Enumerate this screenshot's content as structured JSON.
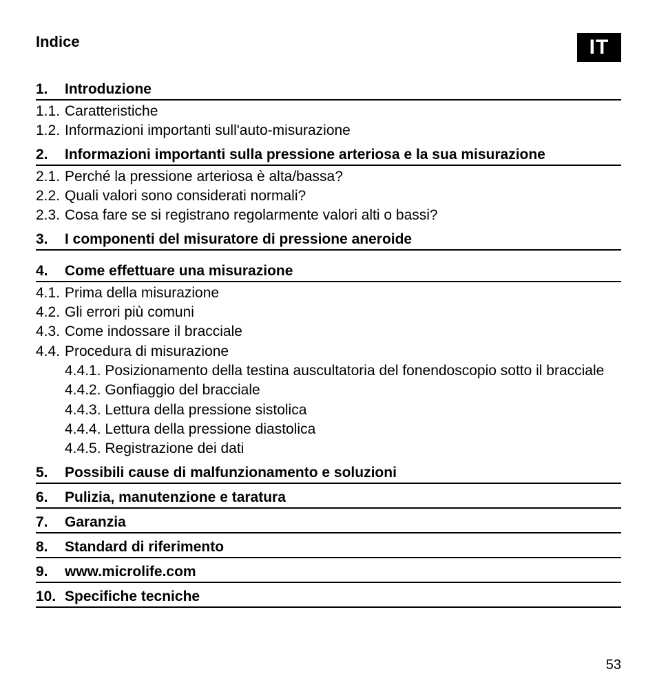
{
  "title": "Indice",
  "lang_badge": "IT",
  "page_number": "53",
  "colors": {
    "text": "#000000",
    "background": "#ffffff",
    "badge_bg": "#000000",
    "badge_text": "#ffffff",
    "rule": "#000000"
  },
  "typography": {
    "heading_fontsize_pt": 16,
    "body_fontsize_pt": 15,
    "heading_weight": 700,
    "body_weight": 400
  },
  "sections": [
    {
      "num": "1.",
      "label": "Introduzione",
      "subs": [
        {
          "num": "1.1.",
          "label": "Caratteristiche"
        },
        {
          "num": "1.2.",
          "label": "Informazioni importanti sull'auto-misurazione"
        }
      ]
    },
    {
      "num": "2.",
      "label": "Informazioni importanti sulla pressione arteriosa e la sua misurazione",
      "subs": [
        {
          "num": "2.1.",
          "label": "Perché la pressione arteriosa è alta/bassa?"
        },
        {
          "num": "2.2.",
          "label": "Quali valori sono considerati normali?"
        },
        {
          "num": "2.3.",
          "label": "Cosa fare se si registrano regolarmente valori alti o bassi?"
        }
      ]
    },
    {
      "num": "3.",
      "label": "I componenti del misuratore di pressione aneroide",
      "subs": []
    },
    {
      "num": "4.",
      "label": "Come effettuare una misurazione",
      "subs": [
        {
          "num": "4.1.",
          "label": "Prima della misurazione"
        },
        {
          "num": "4.2.",
          "label": "Gli errori più comuni"
        },
        {
          "num": "4.3.",
          "label": "Come indossare il bracciale"
        },
        {
          "num": "4.4.",
          "label": "Procedura di misurazione",
          "subs": [
            {
              "num": "4.4.1.",
              "label": "Posizionamento della testina auscultatoria del fonendoscopio sotto il bracciale"
            },
            {
              "num": "4.4.2.",
              "label": "Gonfiaggio del bracciale"
            },
            {
              "num": "4.4.3.",
              "label": "Lettura della pressione sistolica"
            },
            {
              "num": "4.4.4.",
              "label": "Lettura della pressione diastolica"
            },
            {
              "num": "4.4.5.",
              "label": "Registrazione dei dati"
            }
          ]
        }
      ]
    },
    {
      "num": "5.",
      "label": "Possibili cause di malfunzionamento e soluzioni",
      "subs": []
    },
    {
      "num": "6.",
      "label": "Pulizia, manutenzione e taratura",
      "subs": []
    },
    {
      "num": "7.",
      "label": "Garanzia",
      "subs": []
    },
    {
      "num": "8.",
      "label": "Standard di riferimento",
      "subs": []
    },
    {
      "num": "9.",
      "label": "www.microlife.com",
      "subs": []
    },
    {
      "num": "10.",
      "label": "Specifiche tecniche",
      "subs": []
    }
  ]
}
